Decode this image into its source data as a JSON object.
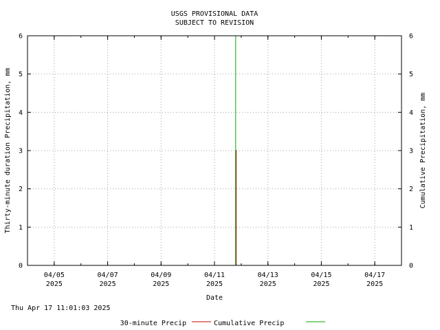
{
  "chart_data": {
    "type": "line",
    "title": [
      "USGS PROVISIONAL DATA",
      "SUBJECT TO REVISION"
    ],
    "xlabel": "Date",
    "ylabel_left": "Thirty-minute duration Precipitation, mm",
    "ylabel_right": "Cumulative Precipitation, mm",
    "xlim": [
      "2025-04-04T00:00",
      "2025-04-18T00:00"
    ],
    "ylim": [
      0,
      6
    ],
    "y_ticks": [
      0,
      1,
      2,
      3,
      4,
      5,
      6
    ],
    "x_ticks": [
      {
        "date": "2025-04-05",
        "label1": "04/05",
        "label2": "2025"
      },
      {
        "date": "2025-04-07",
        "label1": "04/07",
        "label2": "2025"
      },
      {
        "date": "2025-04-09",
        "label1": "04/09",
        "label2": "2025"
      },
      {
        "date": "2025-04-11",
        "label1": "04/11",
        "label2": "2025"
      },
      {
        "date": "2025-04-13",
        "label1": "04/13",
        "label2": "2025"
      },
      {
        "date": "2025-04-15",
        "label1": "04/15",
        "label2": "2025"
      },
      {
        "date": "2025-04-17",
        "label1": "04/17",
        "label2": "2025"
      }
    ],
    "grid": true,
    "legend_position": "bottom",
    "series": [
      {
        "name": "30-minute Precip",
        "color": "#cc0000",
        "points": [
          {
            "x": "2025-04-11T19:00",
            "y": 0
          },
          {
            "x": "2025-04-11T19:00",
            "y": 3
          },
          {
            "x": "2025-04-11T19:30",
            "y": 3
          },
          {
            "x": "2025-04-11T19:30",
            "y": 0
          }
        ]
      },
      {
        "name": "Cumulative Precip",
        "color": "#00aa00",
        "points": [
          {
            "x": "2025-04-11T18:30",
            "y": 0
          },
          {
            "x": "2025-04-11T19:00",
            "y": 0
          },
          {
            "x": "2025-04-11T19:00",
            "y": 6
          },
          {
            "x": "2025-04-17T11:00",
            "y": 6
          }
        ]
      }
    ]
  },
  "timestamp": "Thu Apr 17 11:01:03 2025"
}
